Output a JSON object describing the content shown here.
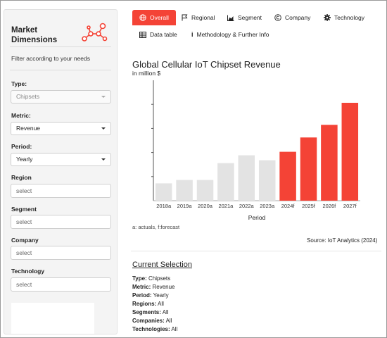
{
  "sidebar": {
    "brand_line1": "Market",
    "brand_line2": "Dimensions",
    "filter_note": "Filter according to your needs",
    "type": {
      "label": "Type:",
      "value": "Chipsets"
    },
    "metric": {
      "label": "Metric:",
      "value": "Revenue"
    },
    "period": {
      "label": "Period:",
      "value": "Yearly"
    },
    "region": {
      "label": "Region",
      "placeholder": "select"
    },
    "segment": {
      "label": "Segment",
      "placeholder": "select"
    },
    "company": {
      "label": "Company",
      "placeholder": "select"
    },
    "technology": {
      "label": "Technology",
      "placeholder": "select"
    }
  },
  "tabs": {
    "overall": "Overall",
    "regional": "Regional",
    "segment": "Segment",
    "company": "Company",
    "technology": "Technology",
    "data_table": "Data table",
    "methodology": "Methodology & Further Info"
  },
  "colors": {
    "accent": "#f44336",
    "actual_bar": "#e3e3e3",
    "forecast_bar": "#f44336"
  },
  "chart_data": {
    "type": "bar",
    "title": "Global Cellular IoT Chipset Revenue",
    "subtitle": "in million $",
    "xlabel": "Period",
    "ylabel": "",
    "categories": [
      "2018a",
      "2019a",
      "2020a",
      "2021a",
      "2022a",
      "2023a",
      "2024f",
      "2025f",
      "2026f",
      "2027f"
    ],
    "values": [
      1.44,
      1.72,
      1.72,
      3.12,
      3.77,
      3.36,
      4.06,
      5.25,
      6.3,
      8.13
    ],
    "forecast_from_index": 6,
    "ylim": [
      0,
      10
    ],
    "yticks_labelled": false,
    "grid": false,
    "legend": "none"
  },
  "chart_note": "a: actuals, f:forecast",
  "source": "Source: IoT Analytics (2024)",
  "current_selection": {
    "title": "Current Selection",
    "items": [
      {
        "key": "Type:",
        "value": "Chipsets"
      },
      {
        "key": "Metric:",
        "value": "Revenue"
      },
      {
        "key": "Period:",
        "value": "Yearly"
      },
      {
        "key": "Regions:",
        "value": "All"
      },
      {
        "key": "Segments:",
        "value": "All"
      },
      {
        "key": "Companies:",
        "value": "All"
      },
      {
        "key": "Technologies:",
        "value": "All"
      }
    ]
  }
}
